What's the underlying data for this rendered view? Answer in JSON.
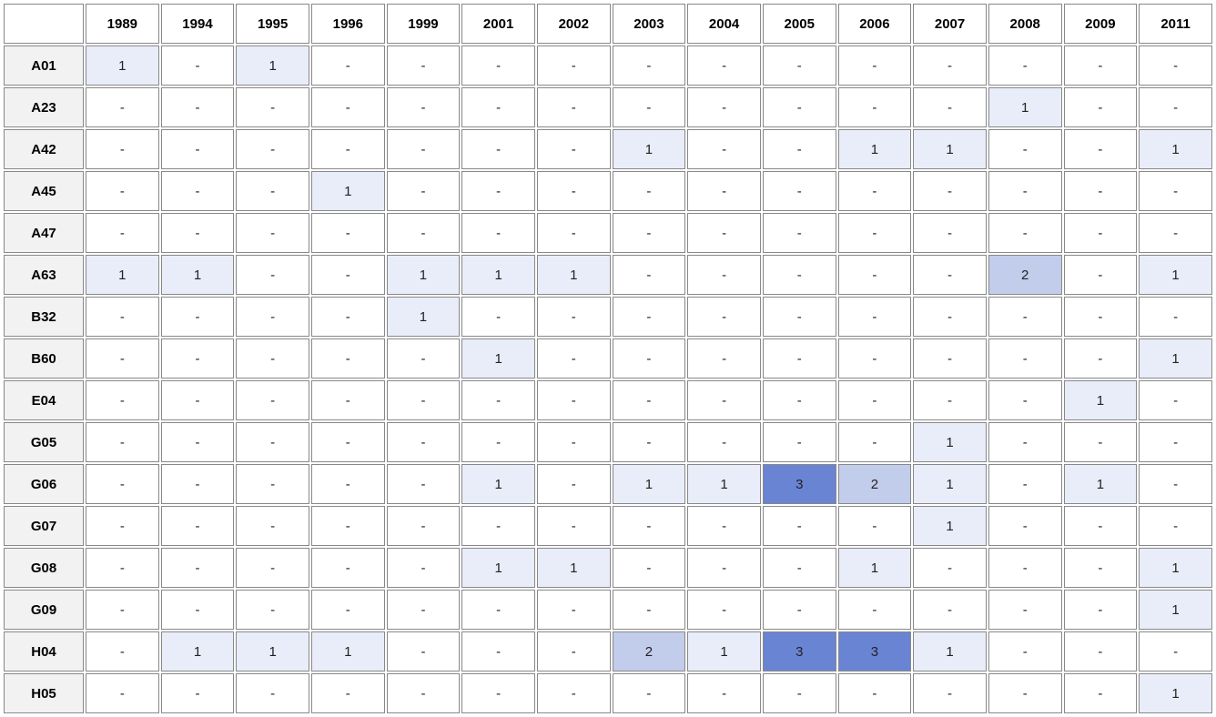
{
  "heatmap": {
    "type": "heatmap",
    "columns": [
      "1989",
      "1994",
      "1995",
      "1996",
      "1999",
      "2001",
      "2002",
      "2003",
      "2004",
      "2005",
      "2006",
      "2007",
      "2008",
      "2009",
      "2011"
    ],
    "rows": [
      "A01",
      "A23",
      "A42",
      "A45",
      "A47",
      "A63",
      "B32",
      "B60",
      "E04",
      "G05",
      "G06",
      "G07",
      "G08",
      "G09",
      "H04",
      "H05"
    ],
    "data": [
      [
        1,
        null,
        1,
        null,
        null,
        null,
        null,
        null,
        null,
        null,
        null,
        null,
        null,
        null,
        null
      ],
      [
        null,
        null,
        null,
        null,
        null,
        null,
        null,
        null,
        null,
        null,
        null,
        null,
        1,
        null,
        null
      ],
      [
        null,
        null,
        null,
        null,
        null,
        null,
        null,
        1,
        null,
        null,
        1,
        1,
        null,
        null,
        1
      ],
      [
        null,
        null,
        null,
        1,
        null,
        null,
        null,
        null,
        null,
        null,
        null,
        null,
        null,
        null,
        null
      ],
      [
        null,
        null,
        null,
        null,
        null,
        null,
        null,
        null,
        null,
        null,
        null,
        null,
        null,
        null,
        null
      ],
      [
        1,
        1,
        null,
        null,
        1,
        1,
        1,
        null,
        null,
        null,
        null,
        null,
        2,
        null,
        1
      ],
      [
        null,
        null,
        null,
        null,
        1,
        null,
        null,
        null,
        null,
        null,
        null,
        null,
        null,
        null,
        null
      ],
      [
        null,
        null,
        null,
        null,
        null,
        1,
        null,
        null,
        null,
        null,
        null,
        null,
        null,
        null,
        1
      ],
      [
        null,
        null,
        null,
        null,
        null,
        null,
        null,
        null,
        null,
        null,
        null,
        null,
        null,
        1,
        null
      ],
      [
        null,
        null,
        null,
        null,
        null,
        null,
        null,
        null,
        null,
        null,
        null,
        1,
        null,
        null,
        null
      ],
      [
        null,
        null,
        null,
        null,
        null,
        1,
        null,
        1,
        1,
        3,
        2,
        1,
        null,
        1,
        null
      ],
      [
        null,
        null,
        null,
        null,
        null,
        null,
        null,
        null,
        null,
        null,
        null,
        1,
        null,
        null,
        null
      ],
      [
        null,
        null,
        null,
        null,
        null,
        1,
        1,
        null,
        null,
        null,
        1,
        null,
        null,
        null,
        1
      ],
      [
        null,
        null,
        null,
        null,
        null,
        null,
        null,
        null,
        null,
        null,
        null,
        null,
        null,
        null,
        1
      ],
      [
        null,
        1,
        1,
        1,
        null,
        null,
        null,
        2,
        1,
        3,
        3,
        1,
        null,
        null,
        null
      ],
      [
        null,
        null,
        null,
        null,
        null,
        null,
        null,
        null,
        null,
        null,
        null,
        null,
        null,
        null,
        1
      ]
    ],
    "empty_symbol": "-",
    "color_scale": {
      "empty": "#ffffff",
      "1": "#e8edf9",
      "2": "#c2cdec",
      "3": "#6a84d4"
    },
    "header_bg": "#ffffff",
    "row_header_bg": "#f2f2f2",
    "border_color": "#888888",
    "font_family": "Verdana",
    "header_fontsize": 15,
    "cell_fontsize": 15,
    "header_fontweight": "bold"
  }
}
